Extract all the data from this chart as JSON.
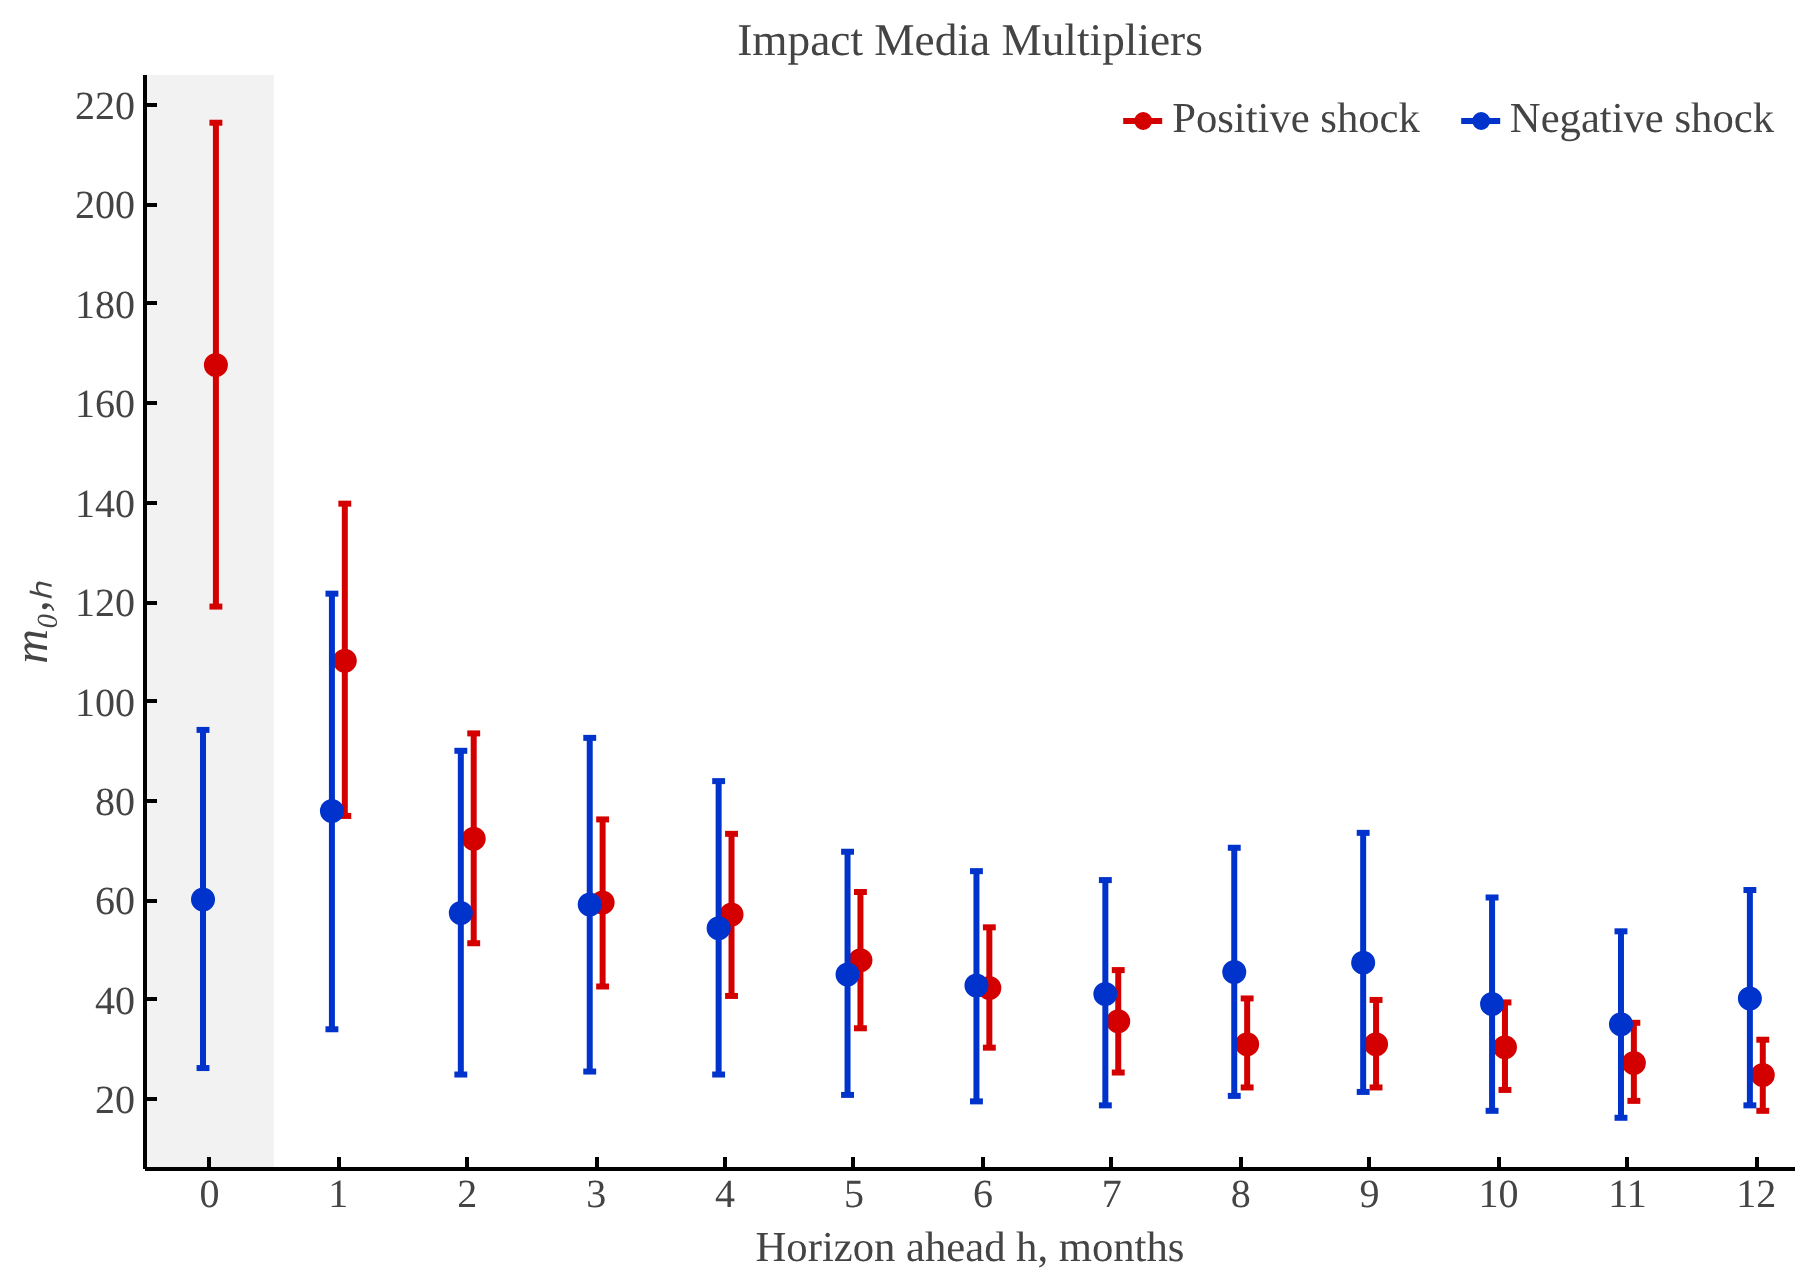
{
  "chart_data": {
    "type": "scatter",
    "title": "Impact Media Multipliers",
    "xlabel": "Horizon ahead h, months",
    "ylabel": "m₀,ₕ",
    "xlim": [
      -0.5,
      12.3
    ],
    "xticks": [
      0,
      1,
      2,
      3,
      4,
      5,
      6,
      7,
      8,
      9,
      10,
      11,
      12
    ],
    "ylim": [
      6,
      226
    ],
    "yticks": [
      20,
      40,
      60,
      80,
      100,
      120,
      140,
      160,
      180,
      200,
      220
    ],
    "grid": false,
    "legend": "top right",
    "marker": "circle",
    "bands": [
      {
        "axis": "x",
        "from": -0.5,
        "to": 0.5,
        "color": "#f2f2f2"
      }
    ],
    "series": [
      {
        "name": "Positive shock",
        "color": "#d40000",
        "x": [
          0.05,
          1.05,
          2.05,
          3.05,
          4.05,
          5.05,
          6.05,
          7.05,
          8.05,
          9.05,
          10.05,
          11.05,
          12.05
        ],
        "values": [
          167.7,
          108.2,
          72.4,
          59.6,
          57.2,
          48.0,
          42.4,
          35.7,
          31.1,
          31.1,
          30.5,
          27.3,
          24.9
        ],
        "errors": [
          [
            119.1,
            216.4
          ],
          [
            77.0,
            139.8
          ],
          [
            51.4,
            93.6
          ],
          [
            42.7,
            76.3
          ],
          [
            40.8,
            73.4
          ],
          [
            34.3,
            61.7
          ],
          [
            30.4,
            54.6
          ],
          [
            25.4,
            46.0
          ],
          [
            22.4,
            40.3
          ],
          [
            22.4,
            40.0
          ],
          [
            21.9,
            39.5
          ],
          [
            19.7,
            35.4
          ],
          [
            17.7,
            32.0
          ]
        ]
      },
      {
        "name": "Negative shock",
        "color": "#0033cc",
        "x": [
          -0.05,
          0.95,
          1.95,
          2.95,
          3.95,
          4.95,
          5.95,
          6.95,
          7.95,
          8.95,
          9.95,
          10.95,
          11.95
        ],
        "values": [
          60.2,
          78.0,
          57.5,
          59.2,
          54.4,
          45.1,
          42.9,
          41.2,
          45.6,
          47.5,
          39.2,
          35.1,
          40.3
        ],
        "errors": [
          [
            26.3,
            94.3
          ],
          [
            34.1,
            121.7
          ],
          [
            25.0,
            90.1
          ],
          [
            25.6,
            92.7
          ],
          [
            25.0,
            84.0
          ],
          [
            20.9,
            69.8
          ],
          [
            19.6,
            65.9
          ],
          [
            18.8,
            64.1
          ],
          [
            20.7,
            70.6
          ],
          [
            21.5,
            73.6
          ],
          [
            17.7,
            60.6
          ],
          [
            16.3,
            53.8
          ],
          [
            18.8,
            62.1
          ]
        ]
      }
    ]
  }
}
